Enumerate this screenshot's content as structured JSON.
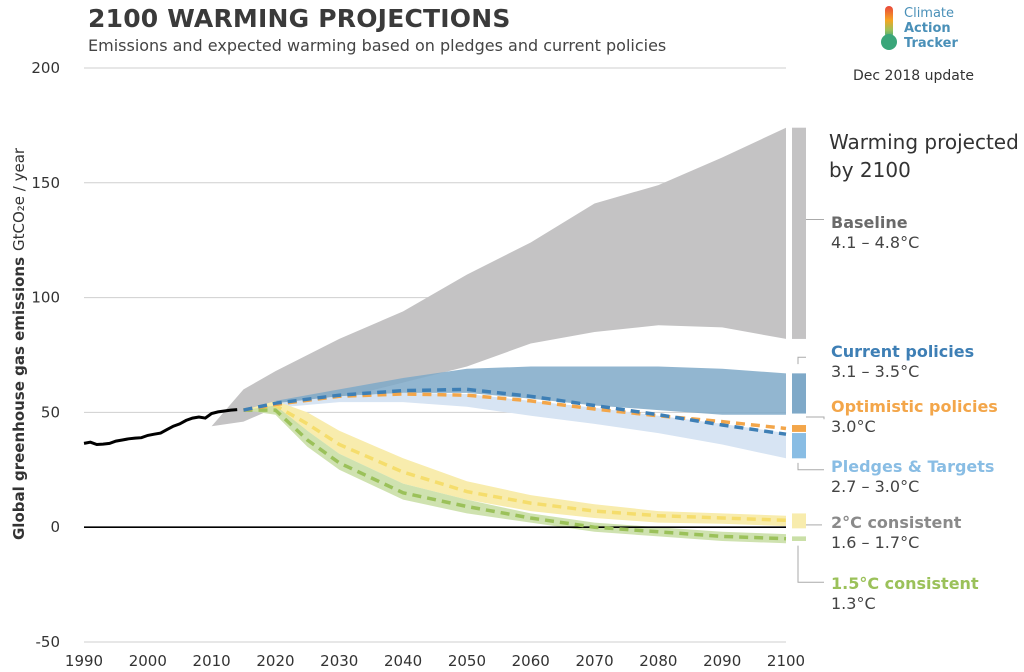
{
  "header": {
    "title": "2100 WARMING PROJECTIONS",
    "subtitle": "Emissions and expected warming based on pledges and current policies",
    "update": "Dec 2018 update",
    "logo_lines": [
      "Climate",
      "Action",
      "Tracker"
    ]
  },
  "colors": {
    "baseline": "#c4c3c4",
    "current": "#7fa9c8",
    "current_line": "#3e7fb5",
    "optimistic": "#f3a64a",
    "pledges": "#d7e4f3",
    "pledges_label": "#89bde4",
    "two_deg": "#f8ecad",
    "two_deg_line": "#f5dd6c",
    "one_five": "#cadfa7",
    "one_five_line": "#9bc15a",
    "historical": "#000000"
  },
  "chart_data": {
    "type": "area",
    "title": "2100 WARMING PROJECTIONS",
    "subtitle": "Emissions and expected warming based on pledges and current policies",
    "xlabel": "",
    "ylabel": "Global greenhouse gas emissions",
    "yunit": "GtCO₂e / year",
    "xlim": [
      1990,
      2100
    ],
    "ylim": [
      -50,
      200
    ],
    "xticks": [
      "1990",
      "2000",
      "2010",
      "2020",
      "2030",
      "2040",
      "2050",
      "2060",
      "2070",
      "2080",
      "2090",
      "2100"
    ],
    "yticks": [
      "200",
      "150",
      "100",
      "50",
      "0",
      "-50"
    ],
    "grid": true,
    "historical": {
      "x": [
        1990,
        1991,
        1992,
        1993,
        1994,
        1995,
        1996,
        1997,
        1998,
        1999,
        2000,
        2001,
        2002,
        2003,
        2004,
        2005,
        2006,
        2007,
        2008,
        2009,
        2010,
        2011,
        2012,
        2013,
        2014
      ],
      "y": [
        36.5,
        37,
        36,
        36.2,
        36.5,
        37.5,
        38,
        38.5,
        38.8,
        39,
        40,
        40.5,
        41,
        42.5,
        44,
        45,
        46.5,
        47.5,
        48,
        47.5,
        49.5,
        50.2,
        50.6,
        51,
        51.2
      ]
    },
    "series": [
      {
        "name": "Baseline",
        "warming": "4.1 – 4.8°C",
        "x": [
          2010,
          2015,
          2020,
          2030,
          2040,
          2050,
          2060,
          2070,
          2080,
          2090,
          2100
        ],
        "upper": [
          44,
          60,
          68,
          82,
          94,
          110,
          124,
          141,
          149,
          161,
          174
        ],
        "lower": [
          44,
          46,
          52,
          56,
          63,
          70,
          80,
          85,
          88,
          87,
          82
        ]
      },
      {
        "name": "Current policies",
        "warming": "3.1 – 3.5°C",
        "x": [
          2015,
          2020,
          2030,
          2040,
          2050,
          2060,
          2070,
          2080,
          2090,
          2100
        ],
        "upper": [
          51,
          55,
          60,
          65,
          69,
          70,
          70,
          70,
          69,
          67
        ],
        "lower": [
          51,
          54,
          57,
          58.5,
          58.5,
          56,
          53,
          51,
          49,
          49
        ],
        "line": [
          51,
          54,
          57.5,
          59.5,
          60,
          57,
          53,
          49,
          44.5,
          40.5
        ]
      },
      {
        "name": "Optimistic policies",
        "warming": "3.0°C",
        "x": [
          2015,
          2020,
          2030,
          2040,
          2050,
          2060,
          2070,
          2080,
          2090,
          2100
        ],
        "line": [
          51,
          53.5,
          57,
          58,
          57.5,
          55,
          51.5,
          48.5,
          46,
          43
        ]
      },
      {
        "name": "Pledges & Targets",
        "warming": "2.7 – 3.0°C",
        "x": [
          2015,
          2020,
          2030,
          2040,
          2050,
          2060,
          2070,
          2080,
          2090,
          2100
        ],
        "upper": [
          51,
          54,
          57,
          58.5,
          58,
          55,
          52,
          48.5,
          45,
          41
        ],
        "lower": [
          51,
          52,
          54.5,
          54.5,
          52.5,
          48.5,
          45,
          41,
          36,
          30
        ]
      },
      {
        "name": "2°C consistent",
        "warming": "1.6 – 1.7°C",
        "x": [
          2015,
          2020,
          2025,
          2030,
          2040,
          2050,
          2060,
          2070,
          2080,
          2090,
          2100
        ],
        "upper": [
          51,
          55,
          50,
          42,
          30,
          20,
          14,
          10,
          7,
          6,
          5
        ],
        "lower": [
          51,
          50,
          42,
          32,
          19,
          12,
          7,
          4,
          2,
          1.5,
          0.5
        ],
        "line": [
          51,
          53,
          45,
          36,
          24,
          15.5,
          10.5,
          7,
          5,
          4,
          3
        ]
      },
      {
        "name": "1.5°C consistent",
        "warming": "1.3°C",
        "x": [
          2015,
          2020,
          2025,
          2030,
          2040,
          2050,
          2060,
          2070,
          2080,
          2090,
          2100
        ],
        "upper": [
          51,
          53,
          42,
          32,
          19,
          12,
          6,
          2,
          0,
          -2,
          -3
        ],
        "lower": [
          51,
          49,
          35,
          25,
          12,
          6,
          2,
          -2,
          -4,
          -6,
          -7
        ],
        "line": [
          51,
          51,
          38,
          28,
          15,
          9,
          4,
          0,
          -2,
          -4,
          -5
        ]
      }
    ],
    "right_panel": {
      "heading": "Warming projected by 2100"
    }
  }
}
